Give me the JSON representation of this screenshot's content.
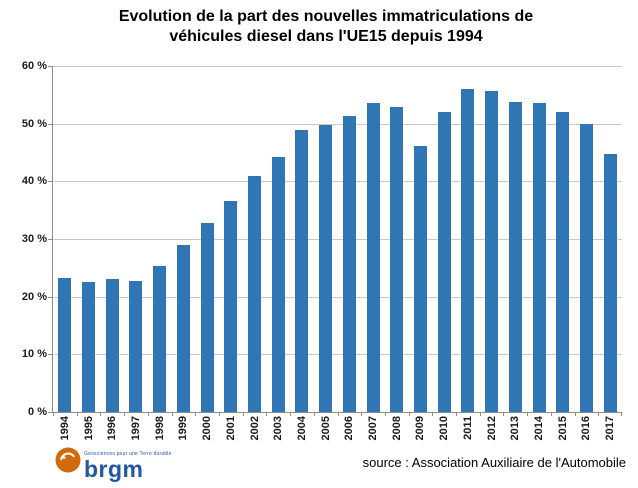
{
  "title": {
    "line1": "Evolution de la part des nouvelles immatriculations de",
    "line2": "véhicules diesel dans l'UE15 depuis 1994"
  },
  "footer": {
    "source": "source : Association Auxiliaire de l'Automobile"
  },
  "logo": {
    "text": "brgm",
    "tagline": "Géosciences pour une Terre durable",
    "circle_color": "#D2690C",
    "text_color": "#2157A4"
  },
  "chart_data": {
    "type": "bar",
    "title": "Evolution de la part des nouvelles immatriculations de véhicules diesel dans l'UE15 depuis 1994",
    "categories": [
      "1994",
      "1995",
      "1996",
      "1997",
      "1998",
      "1999",
      "2000",
      "2001",
      "2002",
      "2003",
      "2004",
      "2005",
      "2006",
      "2007",
      "2008",
      "2009",
      "2010",
      "2011",
      "2012",
      "2013",
      "2014",
      "2015",
      "2016",
      "2017"
    ],
    "values": [
      23.2,
      22.6,
      23.0,
      22.8,
      25.4,
      29.0,
      32.8,
      36.6,
      41.0,
      44.2,
      48.9,
      49.7,
      51.3,
      53.5,
      52.9,
      46.1,
      52.0,
      56.0,
      55.6,
      53.7,
      53.5,
      52.1,
      50.0,
      44.8
    ],
    "xlabel": "",
    "ylabel": "",
    "ylim": [
      0,
      60
    ],
    "y_tick_interval": 10,
    "y_tick_labels": [
      "0 %",
      "10 %",
      "20 %",
      "30 %",
      "40 %",
      "50 %",
      "60 %"
    ],
    "grid": true,
    "legend": false,
    "bar_color": "#3176B4",
    "gridline_color": "#C9C9C9",
    "axis_color": "#8C8C8C"
  }
}
